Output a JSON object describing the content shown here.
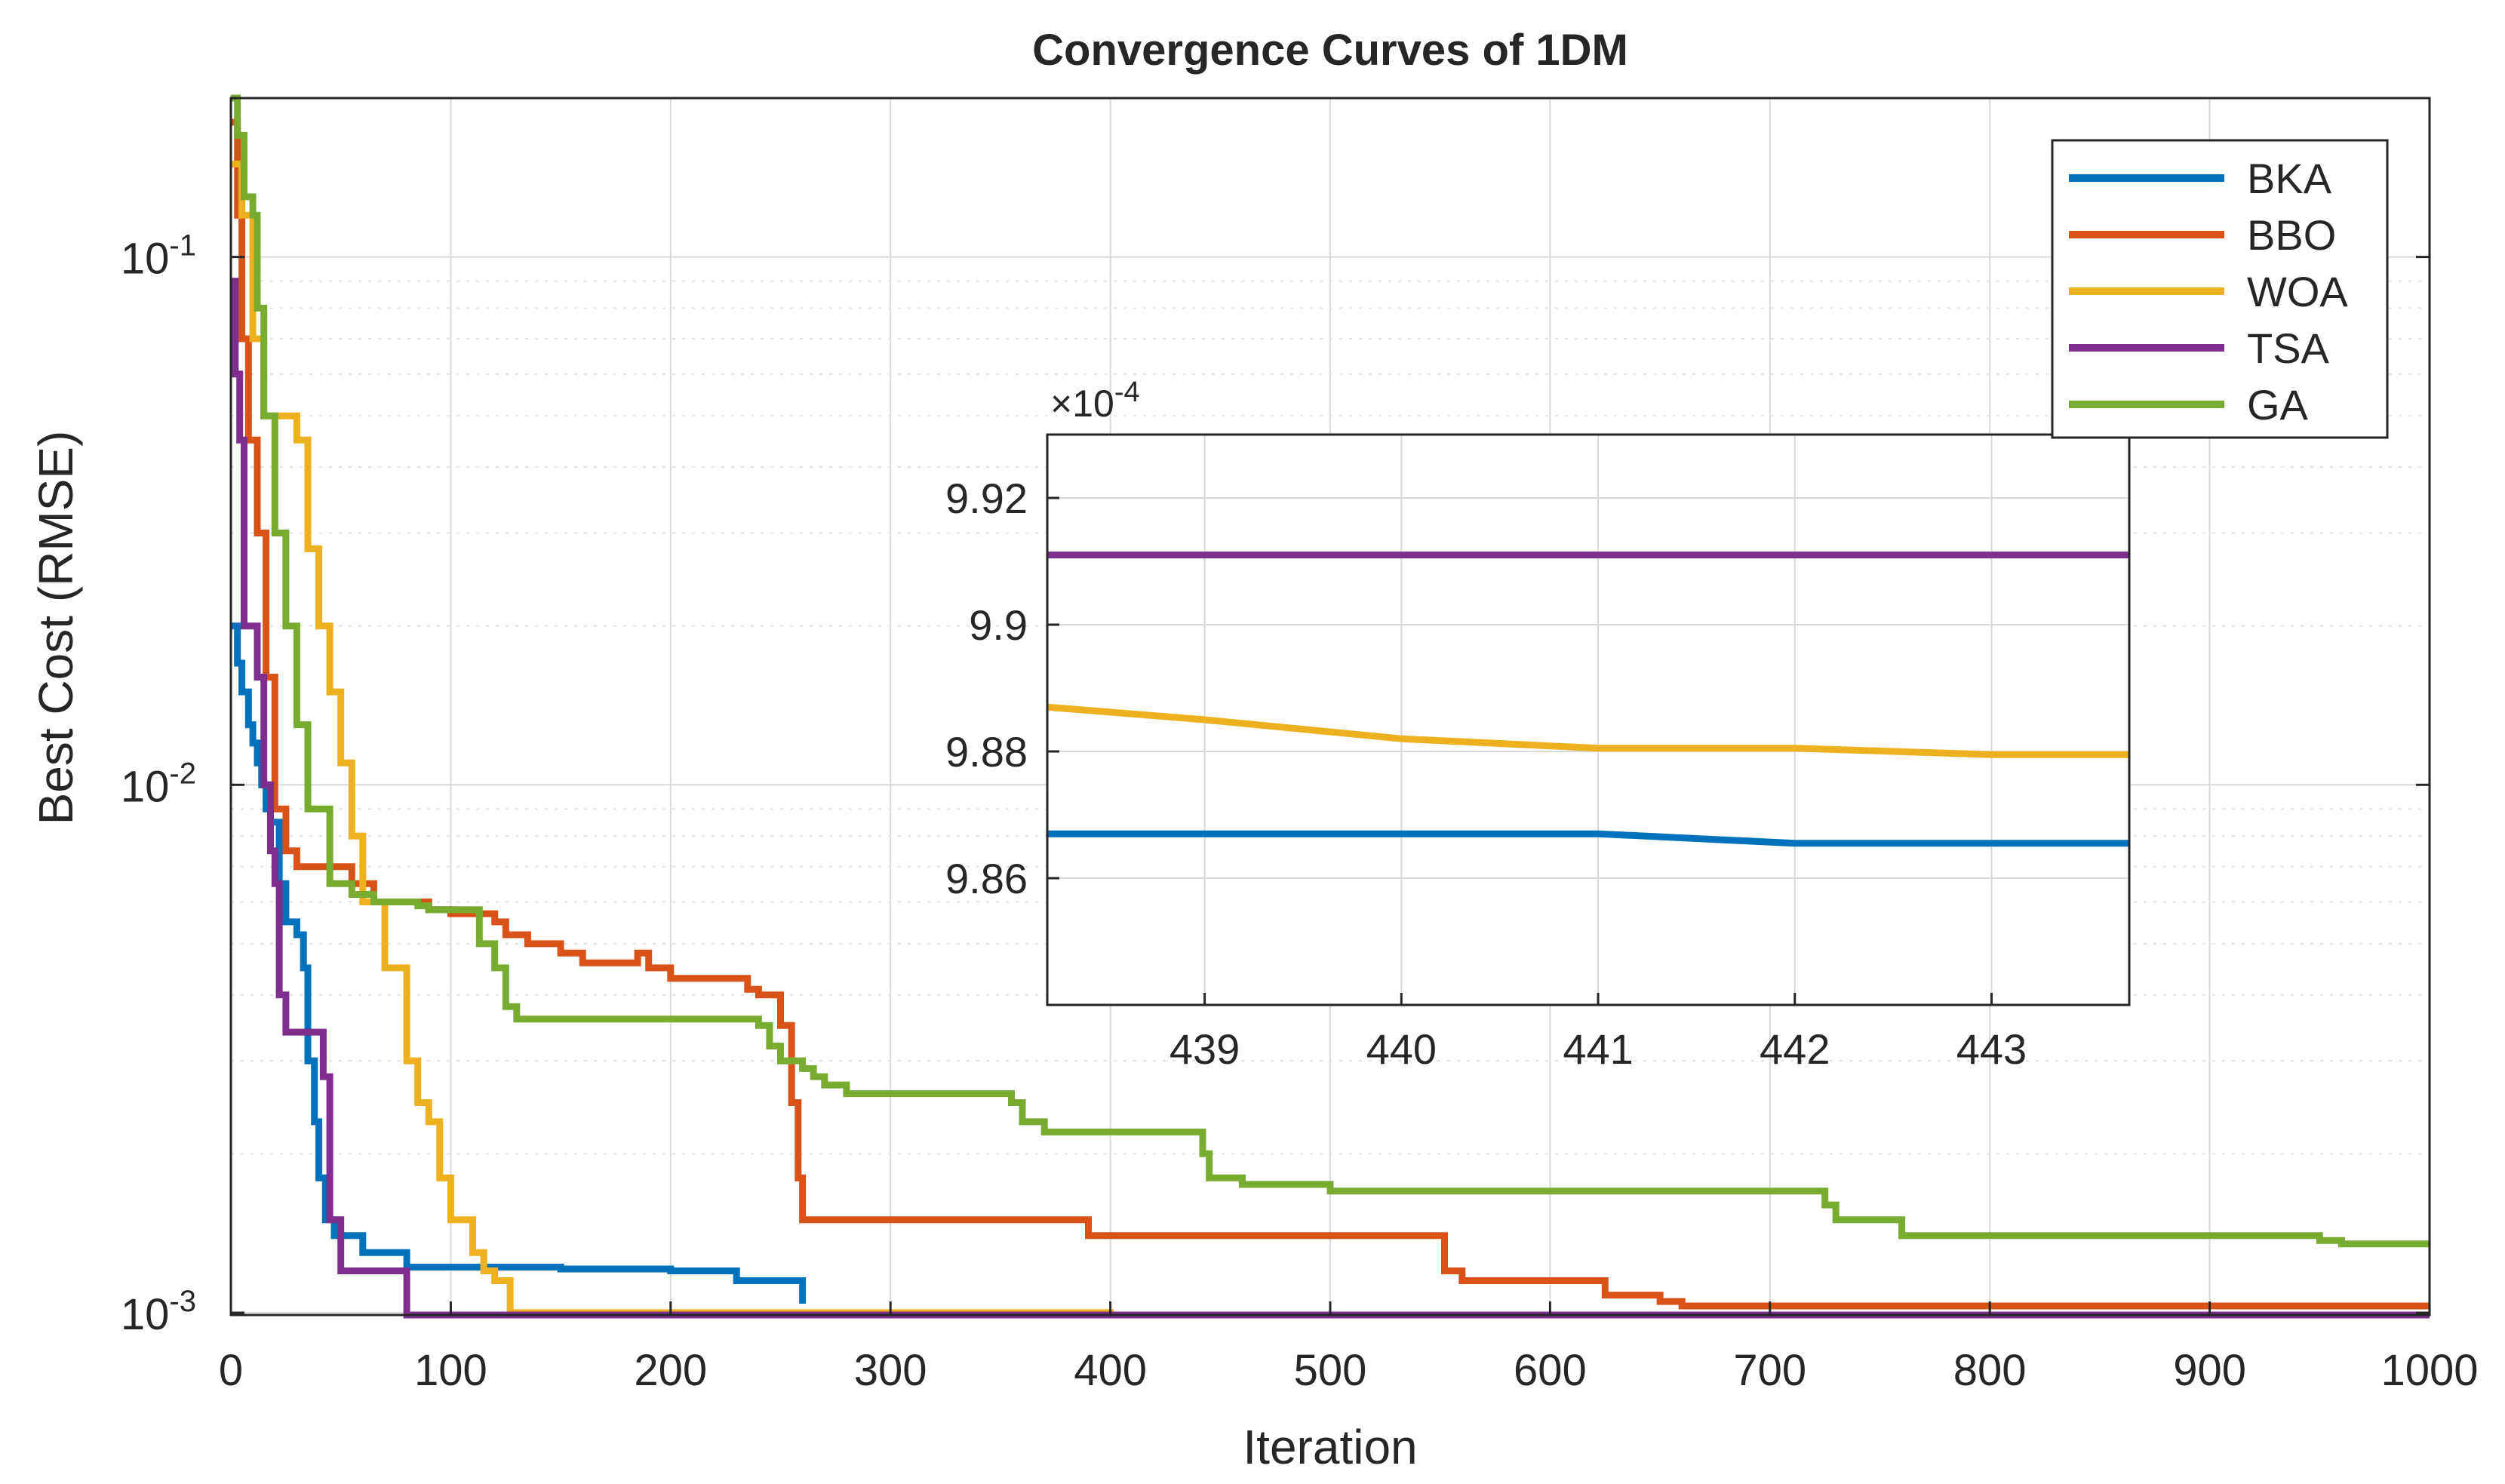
{
  "chart_data": {
    "type": "line",
    "title": "Convergence Curves of 1DM",
    "xlabel": "Iteration",
    "ylabel": "Best Cost (RMSE)",
    "yscale": "log",
    "xlim": [
      0,
      1000
    ],
    "ylim": [
      0.00099,
      0.2
    ],
    "grid": true,
    "legend_position": "top-right",
    "x_ticks": [
      0,
      100,
      200,
      300,
      400,
      500,
      600,
      700,
      800,
      900,
      1000
    ],
    "x_tick_labels": [
      "0",
      "100",
      "200",
      "300",
      "400",
      "500",
      "600",
      "700",
      "800",
      "900",
      "1000"
    ],
    "y_ticks": [
      {
        "value": 0.1,
        "base": "10",
        "exp": "-1"
      },
      {
        "value": 0.01,
        "base": "10",
        "exp": "-2"
      },
      {
        "value": 0.001,
        "base": "10",
        "exp": "-3"
      }
    ],
    "series": [
      {
        "name": "BKA",
        "color": "#0072BD",
        "x": [
          0,
          3,
          5,
          8,
          10,
          12,
          14,
          16,
          18,
          22,
          25,
          30,
          33,
          35,
          38,
          40,
          43,
          47,
          60,
          80,
          150,
          200,
          230,
          260
        ],
        "y": [
          0.02,
          0.017,
          0.015,
          0.013,
          0.012,
          0.011,
          0.01,
          0.009,
          0.0085,
          0.0065,
          0.0055,
          0.0052,
          0.0045,
          0.003,
          0.0023,
          0.0018,
          0.0015,
          0.0014,
          0.0013,
          0.00122,
          0.00121,
          0.0012,
          0.00115,
          0.00104
        ]
      },
      {
        "name": "BBO",
        "color": "#D95319",
        "x": [
          0,
          3,
          5,
          8,
          12,
          16,
          20,
          25,
          30,
          55,
          65,
          75,
          90,
          100,
          120,
          125,
          135,
          150,
          160,
          180,
          185,
          190,
          200,
          235,
          240,
          250,
          255,
          258,
          260,
          270,
          300,
          390,
          400,
          545,
          552,
          560,
          620,
          625,
          640,
          650,
          660,
          1000
        ],
        "y": [
          0.18,
          0.12,
          0.07,
          0.045,
          0.03,
          0.016,
          0.009,
          0.0075,
          0.007,
          0.0065,
          0.006,
          0.006,
          0.0058,
          0.0057,
          0.0055,
          0.0052,
          0.005,
          0.0048,
          0.0046,
          0.0046,
          0.0048,
          0.0045,
          0.0043,
          0.0041,
          0.004,
          0.0035,
          0.0025,
          0.0018,
          0.0015,
          0.0015,
          0.0015,
          0.0014,
          0.0014,
          0.0014,
          0.0012,
          0.00115,
          0.00115,
          0.00108,
          0.00108,
          0.00105,
          0.00103,
          0.00103
        ]
      },
      {
        "name": "WOA",
        "color": "#EDB120",
        "x": [
          0,
          5,
          10,
          15,
          25,
          30,
          35,
          40,
          45,
          50,
          55,
          60,
          70,
          80,
          85,
          90,
          95,
          100,
          110,
          115,
          120,
          127,
          130,
          300,
          400
        ],
        "y": [
          0.15,
          0.12,
          0.07,
          0.05,
          0.05,
          0.045,
          0.028,
          0.02,
          0.015,
          0.011,
          0.008,
          0.006,
          0.0045,
          0.003,
          0.0025,
          0.0023,
          0.0018,
          0.0015,
          0.0013,
          0.0012,
          0.00115,
          0.001,
          0.001,
          0.001,
          0.00099
        ]
      },
      {
        "name": "TSA",
        "color": "#7E2F8E",
        "x": [
          0,
          2,
          4,
          6,
          10,
          12,
          15,
          18,
          20,
          22,
          25,
          32,
          35,
          40,
          42,
          45,
          50,
          70,
          75,
          80,
          200,
          1000
        ],
        "y": [
          0.09,
          0.06,
          0.045,
          0.02,
          0.02,
          0.016,
          0.01,
          0.0075,
          0.0065,
          0.004,
          0.0034,
          0.0034,
          0.0034,
          0.0034,
          0.0028,
          0.0015,
          0.0012,
          0.0012,
          0.0012,
          0.00099,
          0.00099,
          0.00099
        ]
      },
      {
        "name": "GA",
        "color": "#77AC30",
        "x": [
          0,
          3,
          6,
          10,
          12,
          15,
          20,
          25,
          30,
          35,
          45,
          55,
          65,
          70,
          75,
          85,
          90,
          100,
          110,
          113,
          120,
          125,
          130,
          150,
          200,
          240,
          245,
          250,
          260,
          265,
          270,
          280,
          300,
          350,
          355,
          360,
          370,
          380,
          400,
          440,
          442,
          445,
          460,
          480,
          500,
          600,
          700,
          720,
          725,
          730,
          755,
          760,
          780,
          800,
          900,
          950,
          960,
          1000
        ],
        "y": [
          0.2,
          0.17,
          0.13,
          0.12,
          0.08,
          0.05,
          0.03,
          0.02,
          0.013,
          0.009,
          0.0065,
          0.0062,
          0.006,
          0.006,
          0.006,
          0.0059,
          0.0058,
          0.0058,
          0.0058,
          0.005,
          0.0045,
          0.0038,
          0.0036,
          0.0036,
          0.0036,
          0.0035,
          0.0032,
          0.003,
          0.0029,
          0.0028,
          0.0027,
          0.0026,
          0.0026,
          0.0026,
          0.0025,
          0.0023,
          0.0022,
          0.0022,
          0.0022,
          0.0022,
          0.002,
          0.0018,
          0.00175,
          0.00175,
          0.0017,
          0.0017,
          0.0017,
          0.0017,
          0.0016,
          0.0015,
          0.0015,
          0.0014,
          0.0014,
          0.0014,
          0.0014,
          0.00137,
          0.00135,
          0.00135
        ]
      }
    ],
    "inset": {
      "exponent_label": "×10",
      "exponent_power": "-4",
      "xlim": [
        438.2,
        443.7
      ],
      "ylim": [
        9.84,
        9.93
      ],
      "x_ticks": [
        439,
        440,
        441,
        442,
        443
      ],
      "x_tick_labels": [
        "439",
        "440",
        "441",
        "442",
        "443"
      ],
      "y_ticks": [
        9.86,
        9.88,
        9.9,
        9.92
      ],
      "y_tick_labels": [
        "9.86",
        "9.88",
        "9.9",
        "9.92"
      ],
      "series": [
        {
          "name": "TSA",
          "color": "#7E2F8E",
          "x": [
            438.2,
            443.7
          ],
          "y": [
            9.911,
            9.911
          ]
        },
        {
          "name": "WOA",
          "color": "#EDB120",
          "x": [
            438.2,
            439,
            440,
            441,
            442,
            443,
            443.7
          ],
          "y": [
            9.887,
            9.885,
            9.882,
            9.8805,
            9.8805,
            9.8795,
            9.8795
          ]
        },
        {
          "name": "BKA",
          "color": "#0072BD",
          "x": [
            438.2,
            439,
            440,
            441,
            442,
            443,
            443.7
          ],
          "y": [
            9.867,
            9.867,
            9.867,
            9.867,
            9.8655,
            9.8655,
            9.8655
          ]
        }
      ]
    }
  }
}
